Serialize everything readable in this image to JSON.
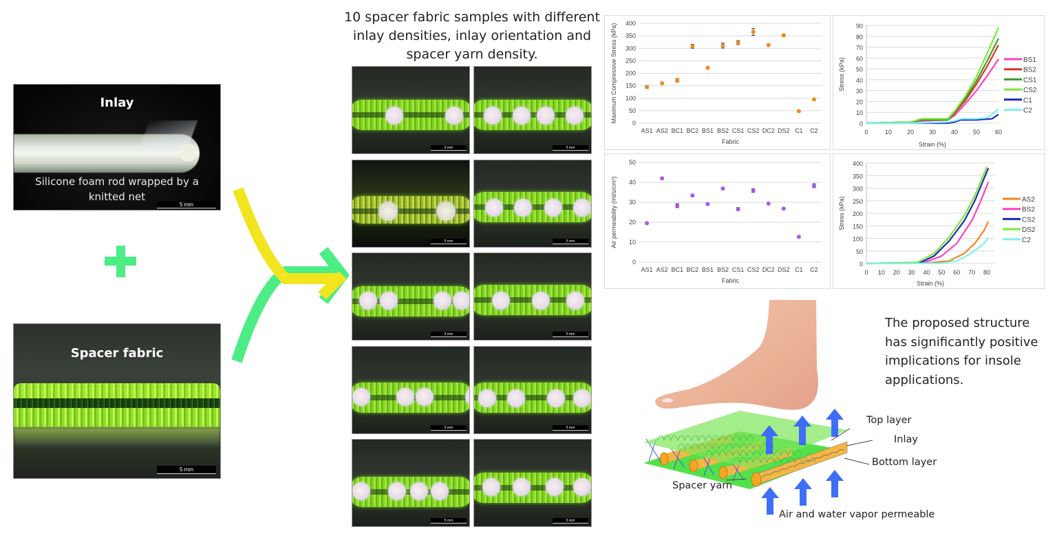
{
  "left_panel": {
    "inlay_photo": {
      "title": "Inlay",
      "caption_line1": "Silicone foam rod wrapped by a",
      "caption_line2": "knitted net",
      "scale_bar": "5 mm"
    },
    "plus_icon": "plus",
    "spacer_photo": {
      "title": "Spacer fabric",
      "scale_bar": "5 mm"
    },
    "arrow_colors": {
      "yellow": "#f2e51f",
      "green": "#4ded86"
    }
  },
  "middle_panel": {
    "title_line1": "10 spacer fabric samples with different",
    "title_line2": "inlay densities, inlay orientation and",
    "title_line3": "spacer yarn density.",
    "samples": [
      {
        "scale_bar": "5 mm",
        "rods": 2
      },
      {
        "scale_bar": "5 mm",
        "rods": 4
      },
      {
        "scale_bar": "5 mm",
        "rods": 2
      },
      {
        "scale_bar": "5 mm",
        "rods": 4
      },
      {
        "scale_bar": "5 mm",
        "rods": 4
      },
      {
        "scale_bar": "5 mm",
        "rods": 3
      },
      {
        "scale_bar": "5 mm",
        "rods": 4
      },
      {
        "scale_bar": "5 mm",
        "rods": 4
      },
      {
        "scale_bar": "5 mm",
        "rods": 4
      },
      {
        "scale_bar": "5 mm",
        "rods": 4
      }
    ]
  },
  "right_panel": {
    "conclusion_line1": "The proposed structure",
    "conclusion_line2": "has significantly positive",
    "conclusion_line3": "implications for insole",
    "conclusion_line4": "applications.",
    "diagram": {
      "top_layer": "Top layer",
      "inlay": "Inlay",
      "bottom_layer": "Bottom layer",
      "spacer_yarn": "Spacer yarn",
      "airflow": "Air and water vapor permeable",
      "arrow_color": "#3d6ef7"
    }
  },
  "chart_data": [
    {
      "type": "scatter",
      "title": "",
      "xlabel": "Fabric",
      "ylabel": "Maximum Compressive Stress (kPa)",
      "categories": [
        "AS1",
        "AS2",
        "BC1",
        "BC2",
        "BS1",
        "BS2",
        "CS1",
        "CS2",
        "DC2",
        "DS2",
        "C1",
        "C2"
      ],
      "values": [
        145,
        160,
        172,
        308,
        222,
        311,
        323,
        366,
        313,
        352,
        48,
        95
      ],
      "error": [
        6,
        3,
        7,
        8,
        4,
        10,
        8,
        14,
        3,
        5,
        2,
        2
      ],
      "ylim": [
        0,
        400
      ],
      "yticks": [
        0,
        50,
        100,
        150,
        200,
        250,
        300,
        350,
        400
      ],
      "color": "#f08a1c",
      "grid": true
    },
    {
      "type": "line",
      "title": "",
      "xlabel": "Strain (%)",
      "ylabel": "Stress (kPa)",
      "xlim": [
        0,
        60
      ],
      "ylim": [
        0,
        90
      ],
      "xticks": [
        0,
        10,
        20,
        30,
        40,
        50,
        60
      ],
      "yticks": [
        0,
        10,
        20,
        30,
        40,
        50,
        60,
        70,
        80,
        90
      ],
      "legend_position": "right",
      "grid": true,
      "series": [
        {
          "name": "BS1",
          "color": "#ff3fbf",
          "x": [
            0,
            20,
            25,
            37,
            40,
            45,
            50,
            55,
            60
          ],
          "values": [
            0,
            1,
            2,
            3,
            7,
            18,
            30,
            44,
            59
          ]
        },
        {
          "name": "BS2",
          "color": "#e0301e",
          "x": [
            0,
            20,
            25,
            37,
            40,
            45,
            50,
            55,
            60
          ],
          "values": [
            0,
            1,
            3,
            3,
            9,
            21,
            36,
            53,
            72
          ]
        },
        {
          "name": "CS1",
          "color": "#3c9a2a",
          "x": [
            0,
            20,
            25,
            37,
            40,
            45,
            50,
            55,
            60
          ],
          "values": [
            0,
            1,
            3,
            3,
            10,
            23,
            39,
            58,
            78
          ]
        },
        {
          "name": "CS2",
          "color": "#7ee835",
          "x": [
            0,
            20,
            25,
            37,
            40,
            45,
            50,
            55,
            60
          ],
          "values": [
            0,
            1,
            4,
            4,
            11,
            25,
            43,
            65,
            88
          ]
        },
        {
          "name": "C1",
          "color": "#1a28c8",
          "x": [
            0,
            20,
            37,
            40,
            43,
            50,
            57,
            60
          ],
          "values": [
            0,
            0,
            0,
            1,
            3,
            3,
            4,
            8
          ]
        },
        {
          "name": "C2",
          "color": "#7ff0ee",
          "x": [
            0,
            20,
            37,
            40,
            43,
            50,
            55,
            60
          ],
          "values": [
            0,
            0,
            1,
            2,
            4,
            4,
            5,
            13
          ]
        }
      ]
    },
    {
      "type": "scatter",
      "title": "",
      "xlabel": "Fabric",
      "ylabel": "Air permeability (ml/s/cm²)",
      "categories": [
        "AS1",
        "AS2",
        "BC1",
        "BC2",
        "BS1",
        "BS2",
        "CS1",
        "CS2",
        "DC2",
        "DS2",
        "C1",
        "C2"
      ],
      "values": [
        19.5,
        42,
        28.3,
        33.4,
        29.1,
        36.9,
        26.6,
        35.9,
        29.3,
        26.8,
        12.7,
        38.3
      ],
      "error": [
        0.3,
        0.4,
        1.0,
        0.6,
        0.4,
        0.3,
        0.8,
        0.9,
        0.4,
        0.3,
        0.3,
        1.0
      ],
      "ylim": [
        0,
        50
      ],
      "yticks": [
        0,
        10,
        20,
        30,
        40,
        50
      ],
      "color": "#a35af0",
      "grid": true
    },
    {
      "type": "line",
      "title": "",
      "xlabel": "Strain (%)",
      "ylabel": "Stress (kPa)",
      "xlim": [
        0,
        85
      ],
      "ylim": [
        0,
        400
      ],
      "xticks": [
        0,
        10,
        20,
        30,
        40,
        50,
        60,
        70,
        80
      ],
      "yticks": [
        0,
        50,
        100,
        150,
        200,
        250,
        300,
        350,
        400
      ],
      "legend_position": "right",
      "grid": true,
      "note": "hysteresis loops (loading and unloading curves)",
      "series": [
        {
          "name": "AS2",
          "color": "#f5841f",
          "x": [
            0,
            40,
            55,
            65,
            72,
            78,
            81
          ],
          "values": [
            0,
            2,
            10,
            40,
            80,
            130,
            168
          ]
        },
        {
          "name": "BS2",
          "color": "#ff3fbf",
          "x": [
            0,
            38,
            50,
            60,
            70,
            76,
            81
          ],
          "values": [
            0,
            3,
            30,
            80,
            170,
            250,
            325
          ]
        },
        {
          "name": "CS2",
          "color": "#1a28b8",
          "x": [
            0,
            36,
            45,
            55,
            65,
            72,
            81
          ],
          "values": [
            0,
            4,
            30,
            90,
            170,
            250,
            380
          ]
        },
        {
          "name": "DS2",
          "color": "#7ee835",
          "x": [
            0,
            34,
            45,
            55,
            65,
            72,
            80
          ],
          "values": [
            0,
            5,
            40,
            105,
            190,
            270,
            385
          ]
        },
        {
          "name": "C2",
          "color": "#7ff0ee",
          "x": [
            0,
            50,
            60,
            68,
            74,
            78,
            81
          ],
          "values": [
            0,
            1,
            10,
            35,
            60,
            80,
            100
          ]
        }
      ]
    }
  ]
}
